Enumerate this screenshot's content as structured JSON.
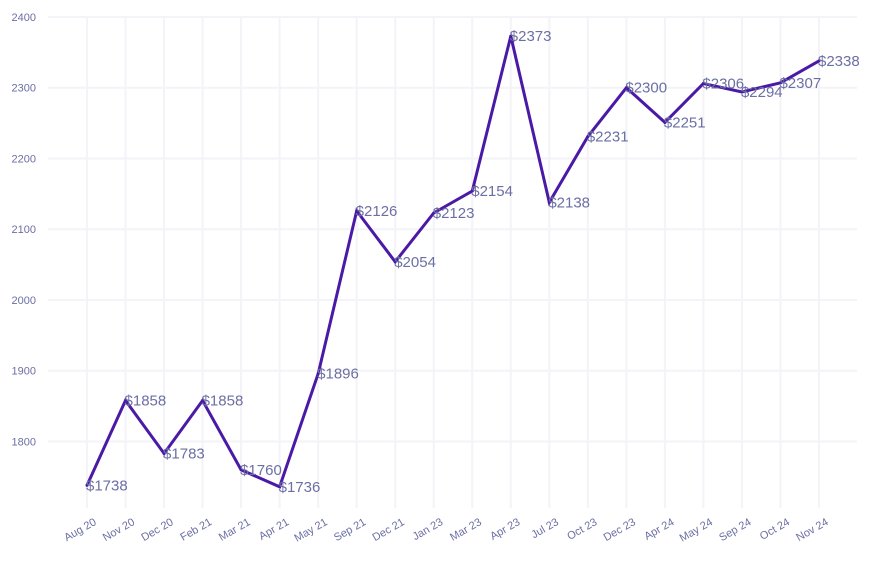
{
  "colors": {
    "line": "#4a1aa6",
    "labels": "#6b6fa3",
    "grid": "#f3f3f8"
  },
  "chart_data": {
    "type": "line",
    "title": "",
    "xlabel": "",
    "ylabel": "",
    "categories": [
      "Aug 20",
      "Nov 20",
      "Dec 20",
      "Feb 21",
      "Mar 21",
      "Apr 21",
      "May 21",
      "Sep 21",
      "Dec 21",
      "Jan 23",
      "Mar 23",
      "Apr 23",
      "Jul 23",
      "Oct 23",
      "Dec 23",
      "Apr 24",
      "May 24",
      "Sep 24",
      "Oct 24",
      "Nov 24"
    ],
    "values": [
      1738,
      1858,
      1783,
      1858,
      1760,
      1736,
      1896,
      2126,
      2054,
      2123,
      2154,
      2373,
      2138,
      2231,
      2300,
      2251,
      2306,
      2294,
      2307,
      2338
    ],
    "data_labels": [
      "$1738",
      "$1858",
      "$1783",
      "$1858",
      "$1760",
      "$1736",
      "$1896",
      "$2126",
      "$2054",
      "$2123",
      "$2154",
      "$2373",
      "$2138",
      "$2231",
      "$2300",
      "$2251",
      "$2306",
      "$2294",
      "$2307",
      "$2338"
    ],
    "y_ticks": [
      1800,
      1900,
      2000,
      2100,
      2200,
      2300,
      2400
    ],
    "y_tick_labels": [
      "1800",
      "1900",
      "2000",
      "2100",
      "2200",
      "2300",
      "2400"
    ],
    "ylim": [
      1706,
      2400
    ],
    "grid": true,
    "legend": "none"
  }
}
